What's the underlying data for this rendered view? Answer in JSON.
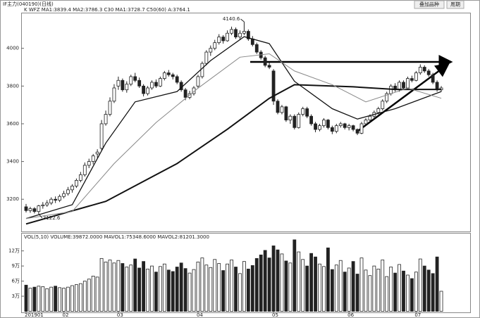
{
  "chart_data": {
    "type": "candlestick",
    "title": "IF主力(040190)(日线)",
    "indicators": "K  WFZ  MA1:3839.4  MA2:3786.3  C30  MA1:3728.7  C50(60)  A:3764.1",
    "volume_title": "VOL(5,10)  VOLUME:39872.0000  MAVOL1:75348.6000  MAVOL2:81201.3000",
    "toolbar": [
      "叠加品种",
      "周期"
    ],
    "high_label": "4140.6",
    "low_label": "3122.6",
    "up_color": "#ffffff",
    "down_color": "#222222",
    "ylim": [
      3033,
      4189
    ],
    "yticks": [
      3200,
      3400,
      3600,
      3800,
      4000
    ],
    "volume_ylim": [
      0,
      15.3
    ],
    "volume_ticks": [
      {
        "value": 3,
        "label": "3万"
      },
      {
        "value": 6,
        "label": "6万"
      },
      {
        "value": 9,
        "label": "9万"
      },
      {
        "value": 12,
        "label": "12万"
      }
    ],
    "categories": [
      "201901",
      null,
      null,
      null,
      null,
      null,
      null,
      null,
      null,
      "02",
      null,
      null,
      null,
      null,
      null,
      null,
      null,
      null,
      null,
      null,
      null,
      null,
      "03",
      null,
      null,
      null,
      null,
      null,
      null,
      null,
      null,
      null,
      null,
      null,
      null,
      null,
      null,
      null,
      null,
      null,
      null,
      "04",
      null,
      null,
      null,
      null,
      null,
      null,
      null,
      null,
      null,
      null,
      null,
      null,
      null,
      null,
      null,
      null,
      null,
      "05",
      null,
      null,
      null,
      null,
      null,
      null,
      null,
      null,
      null,
      null,
      null,
      null,
      null,
      null,
      null,
      null,
      null,
      "06",
      null,
      null,
      null,
      null,
      null,
      null,
      null,
      null,
      null,
      null,
      null,
      null,
      null,
      null,
      null,
      "07",
      null,
      null,
      null,
      null,
      null,
      null
    ],
    "ohlc": [
      [
        3160,
        3175,
        3130,
        3140
      ],
      [
        3140,
        3160,
        3128,
        3150
      ],
      [
        3150,
        3158,
        3125,
        3135
      ],
      [
        3135,
        3170,
        3122.6,
        3165
      ],
      [
        3165,
        3185,
        3150,
        3170
      ],
      [
        3170,
        3195,
        3160,
        3180
      ],
      [
        3180,
        3210,
        3170,
        3200
      ],
      [
        3200,
        3215,
        3180,
        3195
      ],
      [
        3195,
        3225,
        3185,
        3215
      ],
      [
        3215,
        3245,
        3205,
        3230
      ],
      [
        3230,
        3265,
        3220,
        3250
      ],
      [
        3250,
        3280,
        3235,
        3270
      ],
      [
        3270,
        3310,
        3260,
        3300
      ],
      [
        3300,
        3345,
        3290,
        3330
      ],
      [
        3330,
        3395,
        3320,
        3380
      ],
      [
        3380,
        3415,
        3365,
        3400
      ],
      [
        3400,
        3440,
        3385,
        3430
      ],
      [
        3440,
        3465,
        3420,
        3450
      ],
      [
        3470,
        3620,
        3460,
        3600
      ],
      [
        3600,
        3670,
        3590,
        3650
      ],
      [
        3650,
        3740,
        3640,
        3720
      ],
      [
        3720,
        3810,
        3710,
        3790
      ],
      [
        3800,
        3850,
        3780,
        3830
      ],
      [
        3830,
        3840,
        3770,
        3780
      ],
      [
        3780,
        3825,
        3765,
        3810
      ],
      [
        3810,
        3860,
        3800,
        3850
      ],
      [
        3850,
        3870,
        3820,
        3830
      ],
      [
        3830,
        3845,
        3790,
        3800
      ],
      [
        3800,
        3810,
        3745,
        3760
      ],
      [
        3760,
        3800,
        3750,
        3790
      ],
      [
        3790,
        3830,
        3780,
        3820
      ],
      [
        3820,
        3835,
        3790,
        3800
      ],
      [
        3800,
        3850,
        3795,
        3840
      ],
      [
        3840,
        3880,
        3830,
        3870
      ],
      [
        3870,
        3885,
        3850,
        3860
      ],
      [
        3860,
        3870,
        3835,
        3850
      ],
      [
        3850,
        3860,
        3810,
        3820
      ],
      [
        3820,
        3830,
        3770,
        3780
      ],
      [
        3780,
        3790,
        3725,
        3740
      ],
      [
        3740,
        3775,
        3730,
        3760
      ],
      [
        3760,
        3800,
        3750,
        3790
      ],
      [
        3800,
        3860,
        3790,
        3850
      ],
      [
        3850,
        3930,
        3840,
        3920
      ],
      [
        3920,
        3990,
        3910,
        3980
      ],
      [
        3980,
        4015,
        3960,
        4000
      ],
      [
        4000,
        4045,
        3990,
        4030
      ],
      [
        4030,
        4075,
        4020,
        4060
      ],
      [
        4060,
        4070,
        4025,
        4040
      ],
      [
        4040,
        4095,
        4035,
        4080
      ],
      [
        4080,
        4115,
        4070,
        4100
      ],
      [
        4100,
        4110,
        4050,
        4060
      ],
      [
        4060,
        4095,
        4045,
        4080
      ],
      [
        4080,
        4140.6,
        4070,
        4090
      ],
      [
        4090,
        4100,
        4040,
        4050
      ],
      [
        4050,
        4065,
        4010,
        4020
      ],
      [
        4020,
        4030,
        3970,
        3980
      ],
      [
        3980,
        3990,
        3940,
        3950
      ],
      [
        3950,
        3960,
        3900,
        3910
      ],
      [
        3910,
        3925,
        3890,
        3900
      ],
      [
        3880,
        3890,
        3700,
        3720
      ],
      [
        3720,
        3730,
        3650,
        3660
      ],
      [
        3660,
        3700,
        3650,
        3690
      ],
      [
        3690,
        3695,
        3610,
        3620
      ],
      [
        3620,
        3650,
        3600,
        3640
      ],
      [
        3640,
        3650,
        3570,
        3580
      ],
      [
        3580,
        3660,
        3575,
        3650
      ],
      [
        3650,
        3690,
        3640,
        3680
      ],
      [
        3680,
        3690,
        3630,
        3640
      ],
      [
        3640,
        3650,
        3590,
        3600
      ],
      [
        3600,
        3610,
        3555,
        3570
      ],
      [
        3570,
        3600,
        3560,
        3590
      ],
      [
        3590,
        3630,
        3580,
        3620
      ],
      [
        3620,
        3625,
        3570,
        3580
      ],
      [
        3580,
        3590,
        3545,
        3560
      ],
      [
        3560,
        3600,
        3550,
        3590
      ],
      [
        3590,
        3610,
        3580,
        3600
      ],
      [
        3600,
        3605,
        3570,
        3580
      ],
      [
        3580,
        3600,
        3565,
        3590
      ],
      [
        3590,
        3595,
        3560,
        3570
      ],
      [
        3570,
        3575,
        3540,
        3550
      ],
      [
        3550,
        3610,
        3545,
        3600
      ],
      [
        3600,
        3630,
        3590,
        3620
      ],
      [
        3620,
        3650,
        3610,
        3640
      ],
      [
        3640,
        3670,
        3630,
        3660
      ],
      [
        3660,
        3690,
        3650,
        3680
      ],
      [
        3680,
        3730,
        3670,
        3720
      ],
      [
        3720,
        3770,
        3710,
        3760
      ],
      [
        3760,
        3810,
        3750,
        3800
      ],
      [
        3800,
        3815,
        3770,
        3780
      ],
      [
        3780,
        3830,
        3770,
        3820
      ],
      [
        3820,
        3830,
        3780,
        3790
      ],
      [
        3790,
        3850,
        3785,
        3840
      ],
      [
        3840,
        3855,
        3820,
        3830
      ],
      [
        3830,
        3880,
        3825,
        3870
      ],
      [
        3870,
        3915,
        3860,
        3900
      ],
      [
        3900,
        3910,
        3870,
        3880
      ],
      [
        3880,
        3890,
        3850,
        3860
      ],
      [
        3860,
        3870,
        3810,
        3820
      ],
      [
        3820,
        3830,
        3770,
        3780
      ],
      [
        3780,
        3800,
        3770,
        3790
      ]
    ],
    "volume": [
      5.2,
      4.6,
      4.8,
      5.0,
      4.9,
      4.5,
      4.8,
      5.0,
      4.7,
      4.6,
      4.8,
      5.1,
      5.3,
      5.5,
      6.0,
      6.4,
      7.0,
      6.8,
      10.5,
      9.8,
      10.2,
      9.6,
      10.1,
      9.5,
      8.8,
      9.2,
      10.4,
      8.6,
      9.9,
      8.4,
      9.0,
      7.8,
      8.9,
      9.4,
      8.2,
      7.9,
      8.8,
      9.6,
      8.5,
      7.6,
      8.3,
      9.8,
      10.6,
      9.2,
      8.7,
      10.3,
      9.5,
      8.1,
      9.4,
      10.2,
      8.8,
      7.5,
      9.9,
      8.4,
      9.1,
      10.5,
      11.2,
      12.1,
      10.6,
      13.0,
      12.2,
      11.4,
      10.0,
      9.6,
      14.2,
      11.8,
      10.3,
      9.0,
      11.5,
      10.8,
      9.4,
      8.9,
      12.6,
      8.3,
      9.2,
      10.1,
      7.8,
      8.6,
      9.9,
      7.4,
      10.6,
      8.2,
      7.1,
      9.0,
      8.4,
      10.2,
      6.9,
      8.8,
      7.6,
      9.3,
      8.0,
      7.2,
      6.5,
      7.8,
      10.4,
      9.0,
      8.2,
      7.5,
      10.8,
      3.9872
    ],
    "lines": [
      {
        "color": "#111111",
        "width": 2,
        "x": [
          0,
          19,
          36,
          48,
          58,
          64,
          78,
          88,
          99
        ],
        "values": [
          3069,
          3189,
          3389,
          3571,
          3735,
          3807,
          3796,
          3782,
          3782
        ]
      },
      {
        "color": "#111111",
        "width": 1.3,
        "x": [
          0,
          11,
          19,
          26,
          36,
          44,
          52,
          58,
          64,
          73,
          79,
          88,
          99
        ],
        "values": [
          3098,
          3171,
          3498,
          3716,
          3771,
          3935,
          4062,
          4025,
          3825,
          3680,
          3625,
          3680,
          3771
        ]
      },
      {
        "color": "#888888",
        "width": 1,
        "x": [
          0,
          11,
          21,
          31,
          41,
          51,
          58,
          64,
          73,
          81,
          91,
          99
        ],
        "values": [
          3098,
          3135,
          3389,
          3607,
          3789,
          3953,
          3971,
          3880,
          3807,
          3716,
          3789,
          3735
        ]
      }
    ]
  }
}
